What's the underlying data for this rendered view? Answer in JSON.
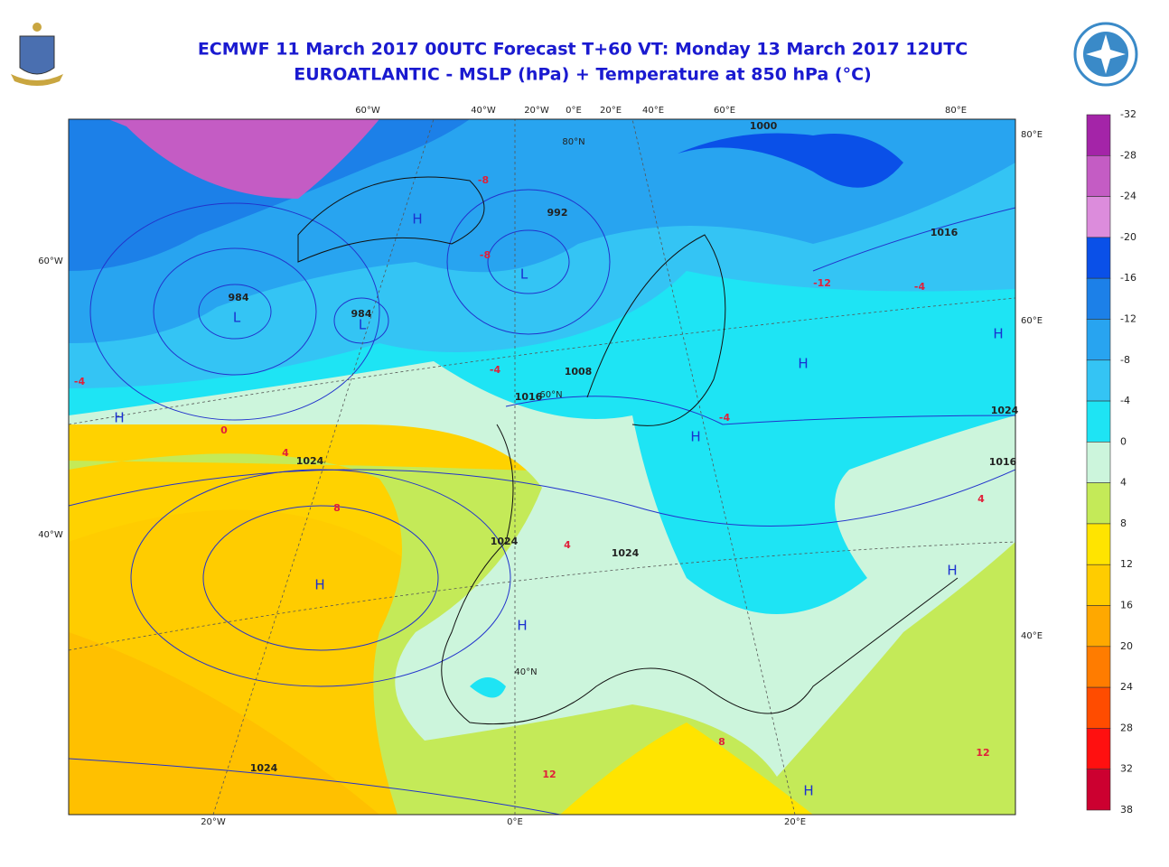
{
  "header": {
    "title_line1": "ECMWF 11 March 2017 00UTC Forecast T+60 VT: Monday 13 March 2017 12UTC",
    "title_line2": "EUROATLANTIC - MSLP (hPa) + Temperature at 850 hPa (°C)"
  },
  "colorbar": {
    "labels": [
      -32,
      -28,
      -24,
      -20,
      -16,
      -12,
      -8,
      -4,
      0,
      4,
      8,
      12,
      16,
      20,
      24,
      28,
      32,
      38
    ],
    "colors": [
      "#a424a8",
      "#c45cc4",
      "#dc8cdc",
      "#0a50e8",
      "#1c80e8",
      "#28a4f0",
      "#34c4f4",
      "#1ee4f4",
      "#ccf5dc",
      "#c4ea58",
      "#ffe400",
      "#ffcc00",
      "#ffa800",
      "#ff7c00",
      "#ff4c00",
      "#ff1010",
      "#cc0030"
    ]
  },
  "axes": {
    "top": [
      "60°W",
      "40°W",
      "20°W",
      "0°E",
      "20°E",
      "40°E",
      "60°E",
      "80°E"
    ],
    "bottom": [
      "20°W",
      "0°E",
      "20°E"
    ],
    "left": [
      "60°W",
      "40°W"
    ],
    "right": [
      "80°E",
      "60°E",
      "40°E"
    ],
    "parallels": [
      "80°N",
      "60°N",
      "40°N"
    ]
  },
  "map_labels": {
    "isobars": [
      "984",
      "984",
      "992",
      "1000",
      "1008",
      "1016",
      "1016",
      "1016",
      "1024",
      "1024",
      "1024",
      "1024",
      "1024"
    ],
    "temperatures": [
      "-4",
      "-8",
      "-12",
      "-4",
      "0",
      "4",
      "8",
      "4",
      "-4",
      "12",
      "8",
      "4",
      "-8",
      "-4",
      "12"
    ],
    "centers": [
      "L",
      "L",
      "L",
      "H",
      "H",
      "H",
      "H",
      "H",
      "H",
      "H",
      "H",
      "H"
    ]
  }
}
